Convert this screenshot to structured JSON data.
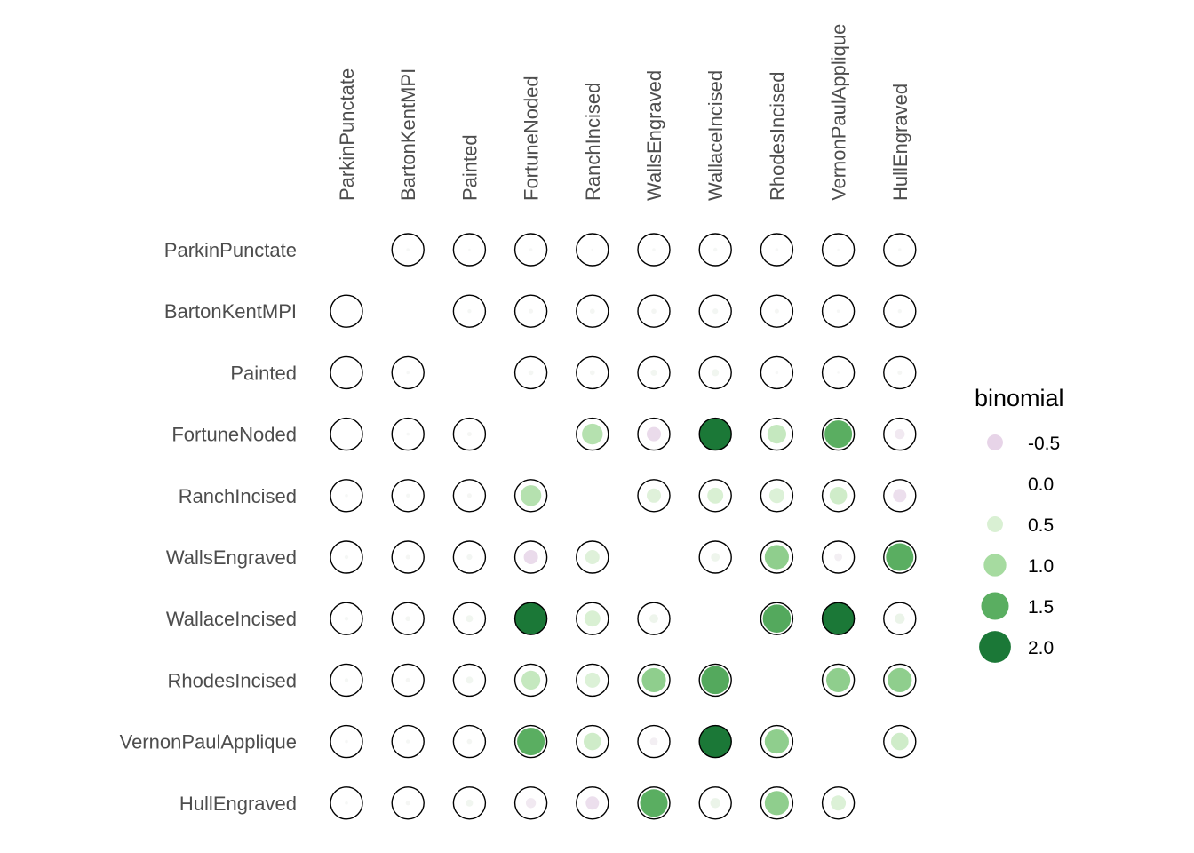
{
  "chart_data": {
    "type": "heatmap",
    "mark": "circle",
    "categories": [
      "ParkinPunctate",
      "BartonKentMPI",
      "Painted",
      "FortuneNoded",
      "RanchIncised",
      "WallsEngraved",
      "WallaceIncised",
      "RhodesIncised",
      "VernonPaulApplique",
      "HullEngraved"
    ],
    "x": [
      "ParkinPunctate",
      "BartonKentMPI",
      "Painted",
      "FortuneNoded",
      "RanchIncised",
      "WallsEngraved",
      "WallaceIncised",
      "RhodesIncised",
      "VernonPaulApplique",
      "HullEngraved"
    ],
    "y": [
      "ParkinPunctate",
      "BartonKentMPI",
      "Painted",
      "FortuneNoded",
      "RanchIncised",
      "WallsEngraved",
      "WallaceIncised",
      "RhodesIncised",
      "VernonPaulApplique",
      "HullEngraved"
    ],
    "values": [
      [
        null,
        0.02,
        0.01,
        0.02,
        0.01,
        0.02,
        0.03,
        0.02,
        0.01,
        0.02
      ],
      [
        0.0,
        null,
        0.03,
        0.04,
        0.05,
        0.05,
        0.06,
        0.04,
        0.02,
        0.03
      ],
      [
        0.0,
        0.02,
        null,
        0.05,
        0.05,
        0.08,
        0.1,
        0.02,
        0.01,
        0.04
      ],
      [
        0.0,
        0.02,
        0.04,
        null,
        0.85,
        -0.4,
        2.0,
        0.7,
        1.5,
        -0.2
      ],
      [
        0.02,
        0.03,
        0.04,
        0.85,
        null,
        0.4,
        0.5,
        0.45,
        0.6,
        -0.35
      ],
      [
        0.03,
        0.04,
        0.06,
        -0.4,
        0.4,
        null,
        0.15,
        1.15,
        -0.12,
        1.5
      ],
      [
        0.03,
        0.05,
        0.1,
        2.0,
        0.5,
        0.15,
        null,
        1.55,
        2.15,
        0.2
      ],
      [
        0.03,
        0.04,
        0.1,
        0.7,
        0.45,
        1.15,
        1.55,
        null,
        1.15,
        1.15
      ],
      [
        0.02,
        0.03,
        0.05,
        1.5,
        0.6,
        -0.12,
        2.15,
        1.15,
        null,
        0.6
      ],
      [
        0.02,
        0.04,
        0.1,
        -0.2,
        -0.35,
        1.5,
        0.2,
        1.15,
        0.45,
        null
      ]
    ],
    "legend": {
      "title": "binomial",
      "breaks": [
        -0.5,
        0.0,
        0.5,
        1.0,
        1.5,
        2.0
      ],
      "labels": [
        "-0.5",
        "0.0",
        "0.5",
        "1.0",
        "1.5",
        "2.0"
      ],
      "placement": "right"
    },
    "colors": {
      "negative": "#e7d4e8",
      "zero": "#f7f7f7",
      "positive_ramp": [
        "#d9f0d3",
        "#a6dba0",
        "#5aae61",
        "#1b7837"
      ],
      "outline": "#000000",
      "axis_text": "#4d4d4d"
    }
  }
}
